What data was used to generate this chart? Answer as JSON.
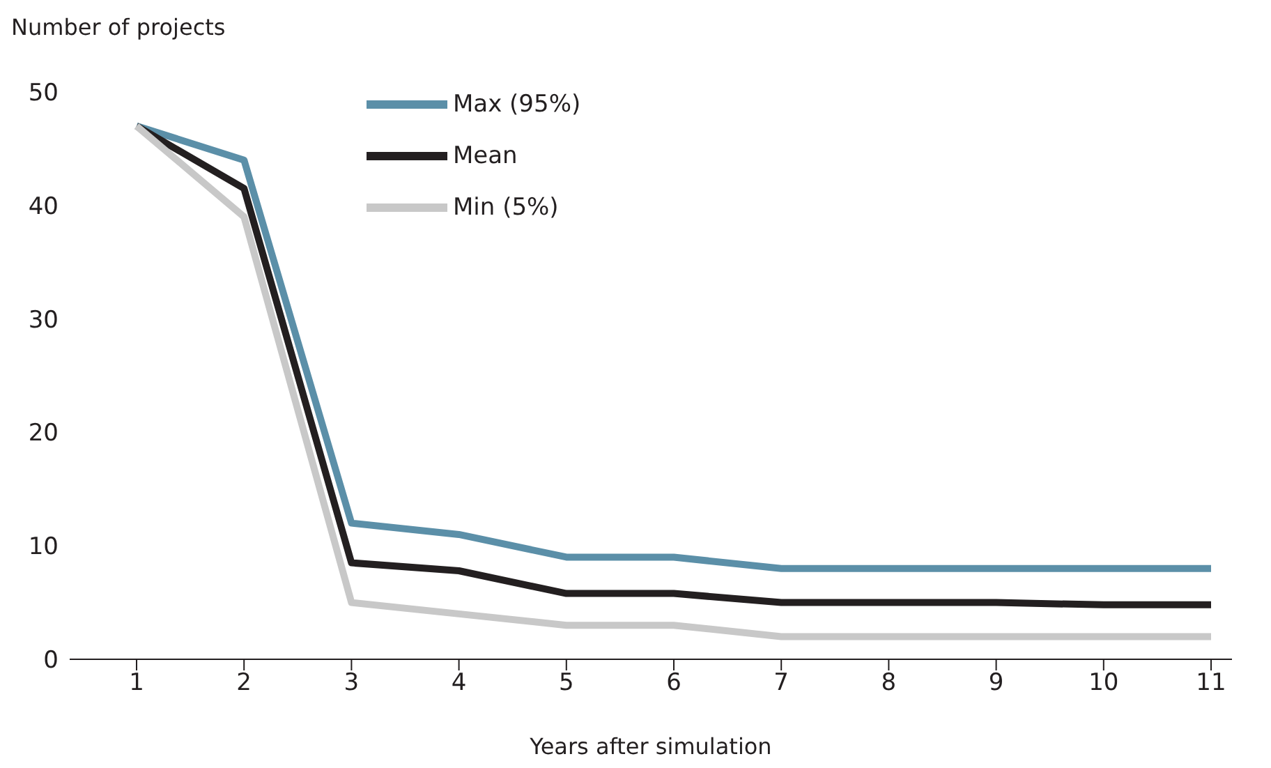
{
  "chart_data": {
    "type": "line",
    "ylabel": "Number of projects",
    "xlabel": "Years after simulation",
    "categories": [
      "1",
      "2",
      "3",
      "4",
      "5",
      "6",
      "7",
      "8",
      "9",
      "10",
      "11"
    ],
    "series": [
      {
        "name": "Max (95%)",
        "color": "#5b8fa8",
        "values": [
          47,
          44,
          12,
          11,
          9,
          9,
          8,
          8,
          8,
          8,
          8
        ]
      },
      {
        "name": "Mean",
        "color": "#231f20",
        "values": [
          47,
          41.5,
          8.5,
          7.8,
          5.8,
          5.8,
          5,
          5,
          5,
          4.8,
          4.8
        ]
      },
      {
        "name": "Min (5%)",
        "color": "#c8c8c8",
        "values": [
          47,
          39,
          5,
          4,
          3,
          3,
          2,
          2,
          2,
          2,
          2
        ]
      }
    ],
    "ylim": [
      0,
      50
    ],
    "yticks": [
      0,
      10,
      20,
      30,
      40,
      50
    ],
    "grid": false,
    "legend": "top left",
    "marker": "none",
    "line_style": "solid"
  }
}
